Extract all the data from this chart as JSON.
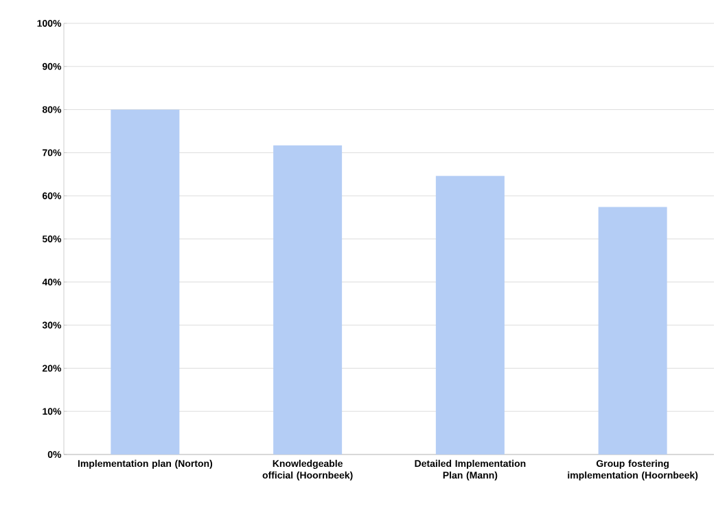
{
  "chart_data": {
    "type": "bar",
    "categories": [
      "Implementation plan (Norton)",
      "Knowledgeable official (Hoornbeek)",
      "Detailed Implementation Plan (Mann)",
      "Group fostering implementation (Hoornbeek)"
    ],
    "values": [
      80,
      71.7,
      64.6,
      57.4
    ],
    "color": "#b4cdf5",
    "ylim": [
      0,
      100
    ],
    "yticks": [
      {
        "value": 0,
        "label": "0%"
      },
      {
        "value": 10,
        "label": "10%"
      },
      {
        "value": 20,
        "label": "20%"
      },
      {
        "value": 30,
        "label": "30%"
      },
      {
        "value": 40,
        "label": "40%"
      },
      {
        "value": 50,
        "label": "50%"
      },
      {
        "value": 60,
        "label": "60%"
      },
      {
        "value": 70,
        "label": "70%"
      },
      {
        "value": 80,
        "label": "80%"
      },
      {
        "value": 90,
        "label": "90%"
      },
      {
        "value": 100,
        "label": "100%"
      }
    ],
    "grid": "y"
  }
}
